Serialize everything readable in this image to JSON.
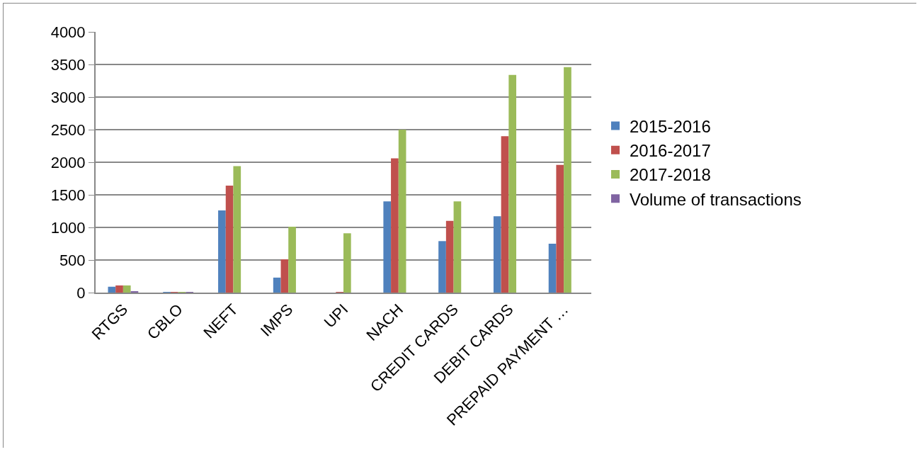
{
  "chart_data": {
    "type": "bar",
    "categories": [
      "RTGS",
      "CBLO",
      "NEFT",
      "IMPS",
      "UPI",
      "NACH",
      "CREDIT CARDS",
      "DEBIT CARDS",
      "PREPAID PAYMENT …"
    ],
    "series": [
      {
        "name": "2015-2016",
        "color": "#4f81bd",
        "values": [
          90,
          5,
          1260,
          230,
          0,
          1400,
          790,
          1170,
          750
        ]
      },
      {
        "name": "2016-2017",
        "color": "#c0504d",
        "values": [
          110,
          5,
          1640,
          510,
          10,
          2060,
          1100,
          2400,
          1960
        ]
      },
      {
        "name": "2017-2018",
        "color": "#9bbb59",
        "values": [
          110,
          5,
          1940,
          1010,
          910,
          2500,
          1400,
          3340,
          3460
        ]
      },
      {
        "name": "Volume of transactions",
        "color": "#8064a2",
        "values": [
          20,
          3,
          null,
          null,
          null,
          null,
          null,
          null,
          null
        ]
      }
    ],
    "ylim": [
      0,
      4000
    ],
    "yticks": [
      0,
      500,
      1000,
      1500,
      2000,
      2500,
      3000,
      3500,
      4000
    ],
    "grid": "y",
    "legend": "right"
  }
}
